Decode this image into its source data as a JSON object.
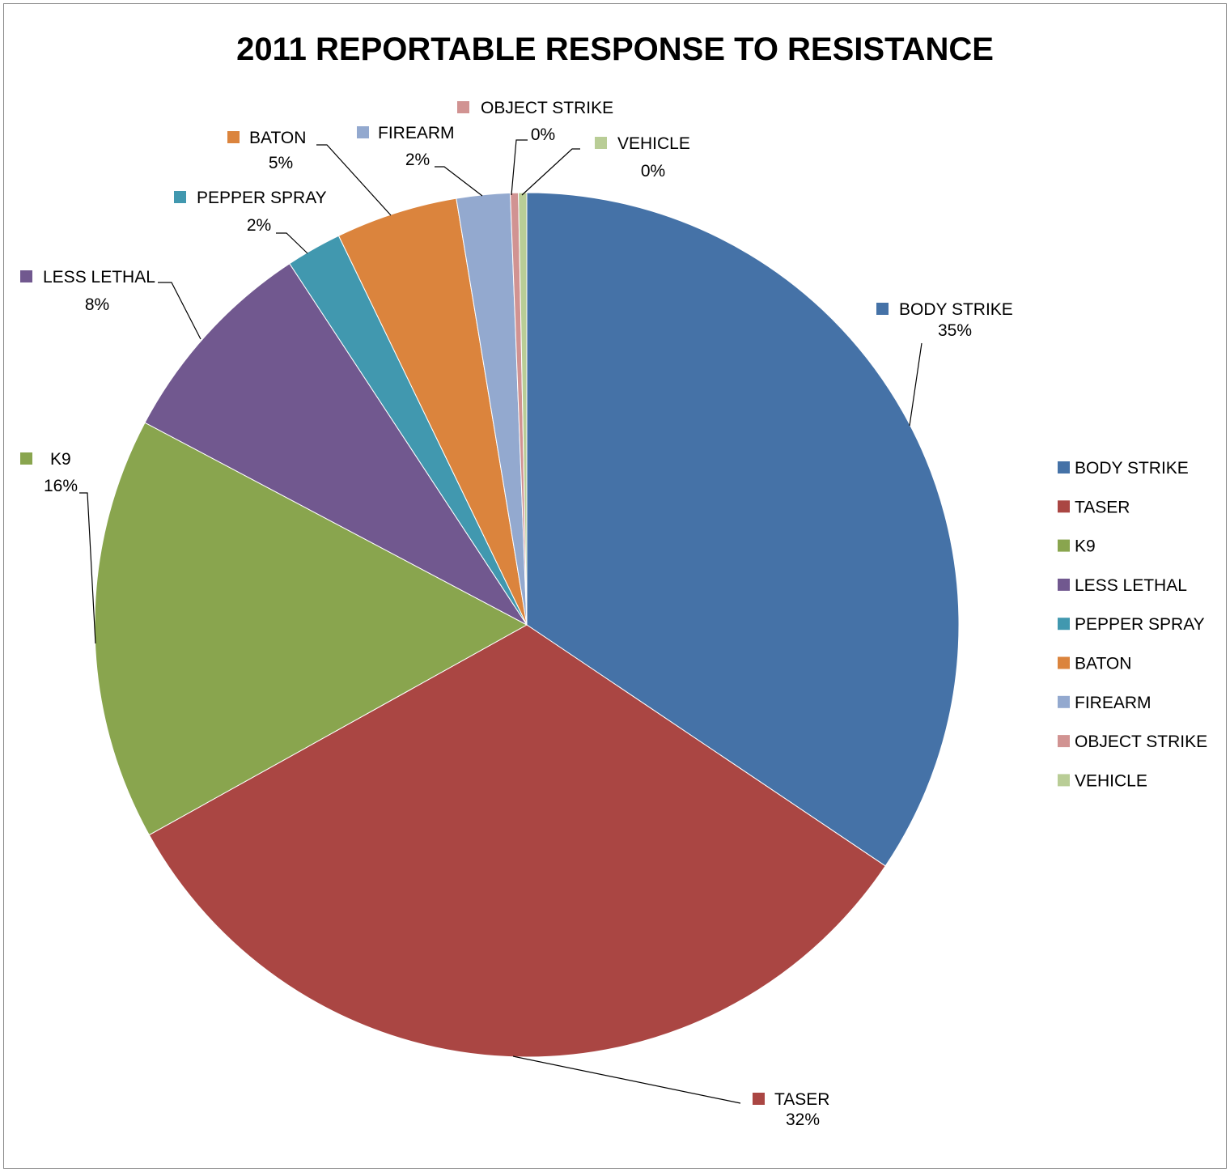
{
  "chart_data": {
    "type": "pie",
    "title": "2011 REPORTABLE RESPONSE TO RESISTANCE",
    "categories": [
      "BODY STRIKE",
      "TASER",
      "K9",
      "LESS LETHAL",
      "PEPPER SPRAY",
      "BATON",
      "FIREARM",
      "OBJECT STRIKE",
      "VEHICLE"
    ],
    "values": [
      35,
      32,
      16,
      8,
      2,
      5,
      2,
      0,
      0
    ],
    "value_labels": [
      "35%",
      "32%",
      "16%",
      "8%",
      "2%",
      "5%",
      "2%",
      "0%",
      "0%"
    ],
    "slice_shares": [
      0.3442,
      0.325,
      0.1583,
      0.08,
      0.0208,
      0.0456,
      0.02,
      0.003,
      0.0031
    ],
    "colors": [
      "#4572A7",
      "#AA4643",
      "#89A54E",
      "#71588F",
      "#4198AF",
      "#DB843D",
      "#93A9CF",
      "#D19392",
      "#B9CD96"
    ],
    "legend_position": "right"
  }
}
